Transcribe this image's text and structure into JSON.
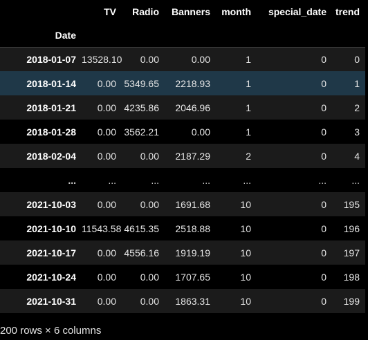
{
  "table": {
    "columns": [
      "TV",
      "Radio",
      "Banners",
      "month",
      "special_date",
      "trend"
    ],
    "index_name": "Date",
    "rows": [
      {
        "index": "2018-01-07",
        "cells": [
          "13528.10",
          "0.00",
          "0.00",
          "1",
          "0",
          "0"
        ]
      },
      {
        "index": "2018-01-14",
        "cells": [
          "0.00",
          "5349.65",
          "2218.93",
          "1",
          "0",
          "1"
        ]
      },
      {
        "index": "2018-01-21",
        "cells": [
          "0.00",
          "4235.86",
          "2046.96",
          "1",
          "0",
          "2"
        ]
      },
      {
        "index": "2018-01-28",
        "cells": [
          "0.00",
          "3562.21",
          "0.00",
          "1",
          "0",
          "3"
        ]
      },
      {
        "index": "2018-02-04",
        "cells": [
          "0.00",
          "0.00",
          "2187.29",
          "2",
          "0",
          "4"
        ]
      },
      {
        "index": "...",
        "cells": [
          "...",
          "...",
          "...",
          "...",
          "...",
          "..."
        ]
      },
      {
        "index": "2021-10-03",
        "cells": [
          "0.00",
          "0.00",
          "1691.68",
          "10",
          "0",
          "195"
        ]
      },
      {
        "index": "2021-10-10",
        "cells": [
          "11543.58",
          "4615.35",
          "2518.88",
          "10",
          "0",
          "196"
        ]
      },
      {
        "index": "2021-10-17",
        "cells": [
          "0.00",
          "4556.16",
          "1919.19",
          "10",
          "0",
          "197"
        ]
      },
      {
        "index": "2021-10-24",
        "cells": [
          "0.00",
          "0.00",
          "1707.65",
          "10",
          "0",
          "198"
        ]
      },
      {
        "index": "2021-10-31",
        "cells": [
          "0.00",
          "0.00",
          "1863.31",
          "10",
          "0",
          "199"
        ]
      }
    ],
    "highlighted_row": 1
  },
  "shape_text": "200 rows × 6 columns"
}
